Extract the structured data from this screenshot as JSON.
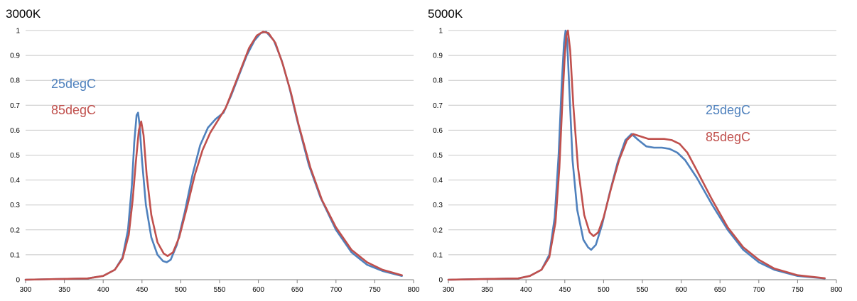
{
  "chart_data": [
    {
      "type": "line",
      "title": "3000K",
      "xlabel": "",
      "ylabel": "",
      "xlim": [
        300,
        800
      ],
      "ylim": [
        0,
        1
      ],
      "x_ticks": [
        "300",
        "350",
        "400",
        "450",
        "500",
        "550",
        "600",
        "650",
        "700",
        "750",
        "800"
      ],
      "y_ticks": [
        "0",
        "0.1",
        "0.2",
        "0.3",
        "0.4",
        "0.5",
        "0.6",
        "0.7",
        "0.8",
        "0.9",
        "1"
      ],
      "grid": "horizontal",
      "legend": "left, inline text labels",
      "series": [
        {
          "name": "25degC",
          "color": "#4F81BD",
          "points": [
            [
              300,
              0
            ],
            [
              380,
              0.005
            ],
            [
              400,
              0.015
            ],
            [
              415,
              0.04
            ],
            [
              425,
              0.09
            ],
            [
              432,
              0.2
            ],
            [
              437,
              0.38
            ],
            [
              440,
              0.55
            ],
            [
              443,
              0.66
            ],
            [
              445,
              0.67
            ],
            [
              447,
              0.62
            ],
            [
              450,
              0.48
            ],
            [
              455,
              0.3
            ],
            [
              462,
              0.17
            ],
            [
              470,
              0.1
            ],
            [
              477,
              0.075
            ],
            [
              482,
              0.07
            ],
            [
              487,
              0.08
            ],
            [
              495,
              0.14
            ],
            [
              505,
              0.27
            ],
            [
              515,
              0.42
            ],
            [
              525,
              0.54
            ],
            [
              535,
              0.61
            ],
            [
              545,
              0.645
            ],
            [
              555,
              0.67
            ],
            [
              565,
              0.74
            ],
            [
              575,
              0.82
            ],
            [
              585,
              0.9
            ],
            [
              595,
              0.96
            ],
            [
              603,
              0.99
            ],
            [
              610,
              0.995
            ],
            [
              620,
              0.96
            ],
            [
              630,
              0.88
            ],
            [
              640,
              0.77
            ],
            [
              650,
              0.64
            ],
            [
              665,
              0.46
            ],
            [
              680,
              0.33
            ],
            [
              700,
              0.2
            ],
            [
              720,
              0.11
            ],
            [
              740,
              0.06
            ],
            [
              760,
              0.035
            ],
            [
              785,
              0.015
            ]
          ]
        },
        {
          "name": "85degC",
          "color": "#C0504D",
          "points": [
            [
              300,
              0
            ],
            [
              380,
              0.005
            ],
            [
              400,
              0.015
            ],
            [
              415,
              0.04
            ],
            [
              425,
              0.085
            ],
            [
              433,
              0.18
            ],
            [
              438,
              0.32
            ],
            [
              442,
              0.47
            ],
            [
              446,
              0.6
            ],
            [
              449,
              0.635
            ],
            [
              452,
              0.58
            ],
            [
              456,
              0.42
            ],
            [
              462,
              0.26
            ],
            [
              470,
              0.15
            ],
            [
              478,
              0.105
            ],
            [
              483,
              0.095
            ],
            [
              490,
              0.11
            ],
            [
              498,
              0.17
            ],
            [
              508,
              0.29
            ],
            [
              518,
              0.42
            ],
            [
              528,
              0.52
            ],
            [
              538,
              0.59
            ],
            [
              548,
              0.64
            ],
            [
              558,
              0.69
            ],
            [
              568,
              0.77
            ],
            [
              578,
              0.85
            ],
            [
              588,
              0.93
            ],
            [
              598,
              0.98
            ],
            [
              606,
              0.995
            ],
            [
              613,
              0.99
            ],
            [
              622,
              0.95
            ],
            [
              632,
              0.86
            ],
            [
              642,
              0.75
            ],
            [
              652,
              0.62
            ],
            [
              667,
              0.45
            ],
            [
              682,
              0.32
            ],
            [
              700,
              0.21
            ],
            [
              720,
              0.12
            ],
            [
              740,
              0.07
            ],
            [
              760,
              0.04
            ],
            [
              785,
              0.018
            ]
          ]
        }
      ]
    },
    {
      "type": "line",
      "title": "5000K",
      "xlabel": "",
      "ylabel": "",
      "xlim": [
        300,
        800
      ],
      "ylim": [
        0,
        1
      ],
      "x_ticks": [
        "300",
        "350",
        "400",
        "450",
        "500",
        "550",
        "600",
        "650",
        "700",
        "750",
        "800"
      ],
      "y_ticks": [
        "0",
        "0.1",
        "0.2",
        "0.3",
        "0.4",
        "0.5",
        "0.6",
        "0.7",
        "0.8",
        "0.9",
        "1"
      ],
      "grid": "horizontal",
      "legend": "right, inline text labels",
      "series": [
        {
          "name": "25degC",
          "color": "#4F81BD",
          "points": [
            [
              300,
              0
            ],
            [
              390,
              0.005
            ],
            [
              405,
              0.015
            ],
            [
              420,
              0.04
            ],
            [
              430,
              0.1
            ],
            [
              437,
              0.25
            ],
            [
              442,
              0.5
            ],
            [
              446,
              0.78
            ],
            [
              449,
              0.95
            ],
            [
              451,
              1.0
            ],
            [
              453,
              0.96
            ],
            [
              456,
              0.75
            ],
            [
              460,
              0.48
            ],
            [
              466,
              0.28
            ],
            [
              474,
              0.16
            ],
            [
              480,
              0.13
            ],
            [
              484,
              0.12
            ],
            [
              490,
              0.14
            ],
            [
              498,
              0.22
            ],
            [
              508,
              0.35
            ],
            [
              518,
              0.47
            ],
            [
              528,
              0.56
            ],
            [
              536,
              0.585
            ],
            [
              545,
              0.56
            ],
            [
              555,
              0.535
            ],
            [
              565,
              0.53
            ],
            [
              575,
              0.53
            ],
            [
              585,
              0.525
            ],
            [
              595,
              0.51
            ],
            [
              605,
              0.48
            ],
            [
              620,
              0.41
            ],
            [
              640,
              0.3
            ],
            [
              660,
              0.2
            ],
            [
              680,
              0.12
            ],
            [
              700,
              0.07
            ],
            [
              720,
              0.04
            ],
            [
              750,
              0.015
            ],
            [
              785,
              0.005
            ]
          ]
        },
        {
          "name": "85degC",
          "color": "#C0504D",
          "points": [
            [
              300,
              0
            ],
            [
              390,
              0.005
            ],
            [
              405,
              0.015
            ],
            [
              420,
              0.04
            ],
            [
              430,
              0.09
            ],
            [
              438,
              0.23
            ],
            [
              443,
              0.45
            ],
            [
              447,
              0.72
            ],
            [
              450,
              0.9
            ],
            [
              452,
              0.98
            ],
            [
              454,
              1.0
            ],
            [
              457,
              0.92
            ],
            [
              461,
              0.7
            ],
            [
              467,
              0.45
            ],
            [
              475,
              0.26
            ],
            [
              482,
              0.19
            ],
            [
              487,
              0.175
            ],
            [
              493,
              0.19
            ],
            [
              500,
              0.25
            ],
            [
              510,
              0.37
            ],
            [
              520,
              0.48
            ],
            [
              530,
              0.56
            ],
            [
              538,
              0.585
            ],
            [
              548,
              0.575
            ],
            [
              558,
              0.565
            ],
            [
              568,
              0.565
            ],
            [
              578,
              0.565
            ],
            [
              588,
              0.56
            ],
            [
              598,
              0.545
            ],
            [
              608,
              0.51
            ],
            [
              620,
              0.44
            ],
            [
              640,
              0.32
            ],
            [
              660,
              0.21
            ],
            [
              680,
              0.13
            ],
            [
              700,
              0.08
            ],
            [
              720,
              0.045
            ],
            [
              750,
              0.018
            ],
            [
              785,
              0.006
            ]
          ]
        }
      ]
    }
  ]
}
